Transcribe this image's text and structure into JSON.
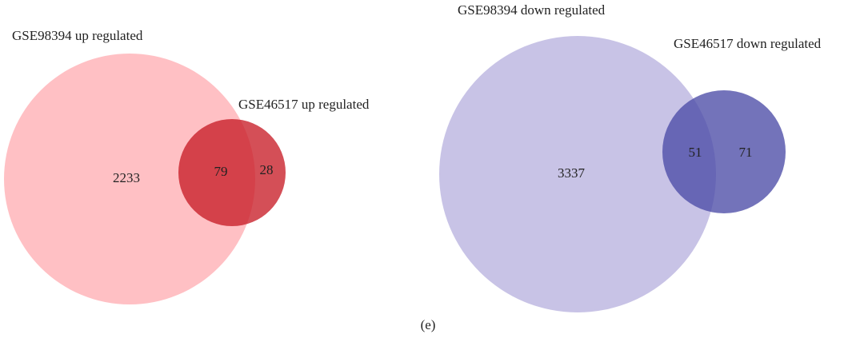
{
  "chart_data": [
    {
      "type": "venn",
      "sets": [
        {
          "name": "GSE98394 up regulated",
          "color": "#ffc0c4"
        },
        {
          "name": "GSE46517 up regulated",
          "color": "#c81e28"
        }
      ],
      "values": [
        2233,
        79,
        28
      ]
    },
    {
      "type": "venn",
      "sets": [
        {
          "name": "GSE98394 down regulated",
          "color": "#c8c3e6"
        },
        {
          "name": "GSE46517 down regulated",
          "color": "#4b4ba6"
        }
      ],
      "values": [
        3337,
        51,
        71
      ]
    }
  ],
  "caption": "(e)"
}
